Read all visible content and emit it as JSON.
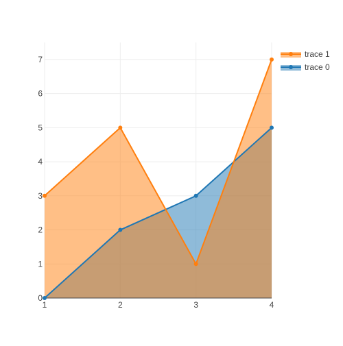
{
  "chart_data": {
    "type": "area",
    "title": "",
    "xlabel": "",
    "ylabel": "",
    "x_ticks": [
      "1",
      "2",
      "3",
      "4"
    ],
    "y_ticks": [
      "0",
      "1",
      "2",
      "3",
      "4",
      "5",
      "6",
      "7"
    ],
    "xlim": [
      1,
      4
    ],
    "ylim": [
      0,
      7.5
    ],
    "grid": true,
    "legend_placement": "top-right",
    "series": [
      {
        "name": "trace 0",
        "x": [
          1,
          2,
          3,
          4
        ],
        "y": [
          0,
          2,
          3,
          5
        ],
        "color": "#1f77b4",
        "fill": "tozeroy"
      },
      {
        "name": "trace 1",
        "x": [
          1,
          2,
          3,
          4
        ],
        "y": [
          3,
          5,
          1,
          7
        ],
        "color": "#ff7f0e",
        "fill": "tozeroy"
      }
    ],
    "legend_order": [
      "trace 1",
      "trace 0"
    ]
  }
}
